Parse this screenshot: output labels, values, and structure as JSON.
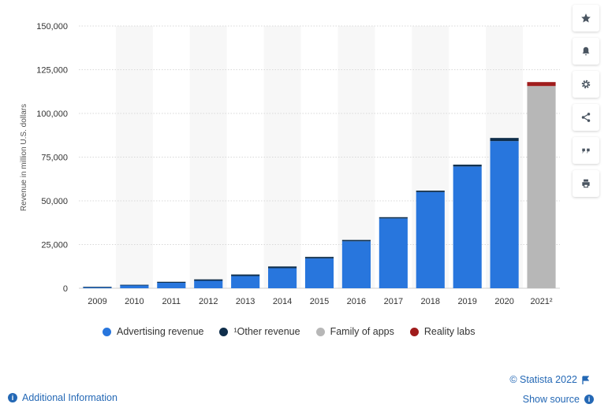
{
  "chart_data": {
    "type": "bar",
    "stacked": true,
    "categories": [
      "2009",
      "2010",
      "2011",
      "2012",
      "2013",
      "2014",
      "2015",
      "2016",
      "2017",
      "2018",
      "2019",
      "2020",
      "2021²"
    ],
    "series": [
      {
        "name": "Advertising revenue",
        "color": "#2876dd",
        "values": [
          764,
          1868,
          3154,
          4279,
          6986,
          11492,
          17079,
          26885,
          39942,
          55013,
          69655,
          84169,
          0
        ]
      },
      {
        "name": "¹Other revenue",
        "color": "#0f2e4b",
        "values": [
          10,
          106,
          557,
          810,
          886,
          974,
          849,
          753,
          711,
          825,
          1042,
          1800,
          0
        ]
      },
      {
        "name": "Family of apps",
        "color": "#b7b7b7",
        "values": [
          0,
          0,
          0,
          0,
          0,
          0,
          0,
          0,
          0,
          0,
          0,
          0,
          115655
        ]
      },
      {
        "name": "Reality labs",
        "color": "#a01c1c",
        "values": [
          0,
          0,
          0,
          0,
          0,
          0,
          0,
          0,
          0,
          0,
          0,
          0,
          2274
        ]
      }
    ],
    "ylabel": "Revenue in million U.S. dollars",
    "xlabel": "",
    "ylim": [
      0,
      150000
    ],
    "yticks": [
      "0",
      "25,000",
      "50,000",
      "75,000",
      "100,000",
      "125,000",
      "150,000"
    ],
    "grid": true,
    "legend_position": "bottom"
  },
  "toolbar": {
    "icons": [
      "star-icon",
      "bell-icon",
      "gear-icon",
      "share-icon",
      "quote-icon",
      "print-icon"
    ]
  },
  "footer": {
    "credit": "© Statista 2022",
    "show_source": "Show source",
    "additional_info": "Additional Information"
  }
}
